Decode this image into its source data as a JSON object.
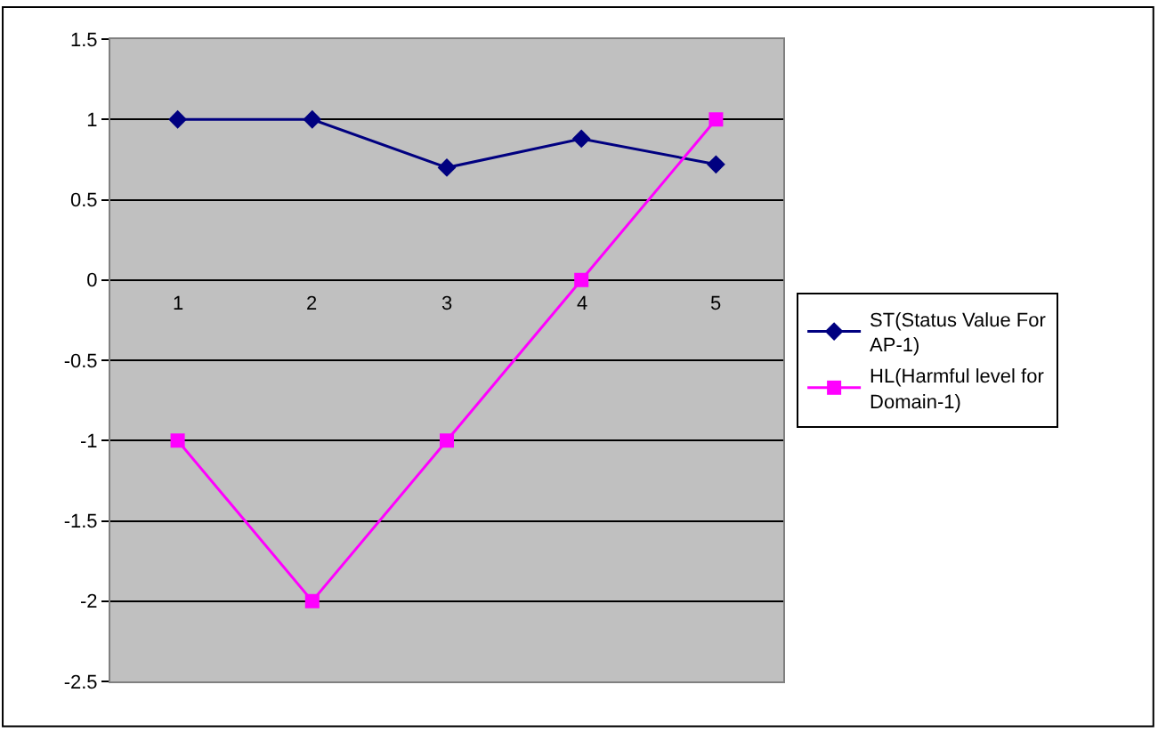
{
  "chart_data": {
    "type": "line",
    "categories": [
      "1",
      "2",
      "3",
      "4",
      "5"
    ],
    "series": [
      {
        "name": "ST(Status Value For AP-1)",
        "color": "#000080",
        "values": [
          1,
          1,
          0.7,
          0.88,
          0.72
        ],
        "marker": "diamond"
      },
      {
        "name": "HL(Harmful level for Domain-1)",
        "color": "#ff00ff",
        "values": [
          -1,
          -2,
          -1,
          0,
          1
        ],
        "marker": "square"
      }
    ],
    "ylim": [
      -2.5,
      1.5
    ],
    "yticks": [
      -2.5,
      -2,
      -1.5,
      -1,
      -0.5,
      0,
      0.5,
      1,
      1.5
    ],
    "grid": "y",
    "legend": "right"
  }
}
